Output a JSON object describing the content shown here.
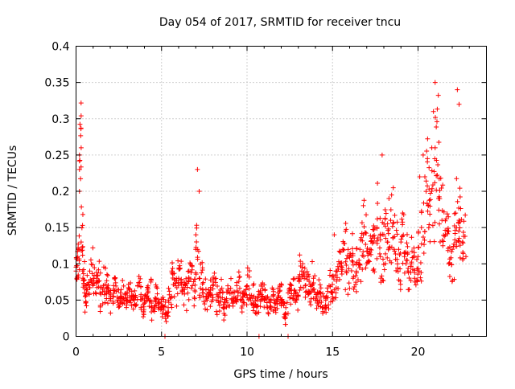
{
  "chart_data": {
    "type": "scatter",
    "title": "Day 054 of 2017, SRMTID for receiver tncu",
    "xlabel": "GPS time / hours",
    "ylabel": "SRMTID / TECUs",
    "xlim": [
      0,
      24
    ],
    "ylim": [
      0,
      0.4
    ],
    "xticks": [
      0,
      5,
      10,
      15,
      20
    ],
    "xtick_labels": [
      "0",
      "5",
      "10",
      "15",
      "20"
    ],
    "yticks": [
      0,
      0.05,
      0.1,
      0.15,
      0.2,
      0.25,
      0.3,
      0.35,
      0.4
    ],
    "ytick_labels": [
      "0",
      "0.05",
      "0.1",
      "0.15",
      "0.2",
      "0.25",
      "0.3",
      "0.35",
      "0.4"
    ],
    "grid": true,
    "marker": "plus",
    "color": "#ff0000",
    "series": [
      {
        "name": "SRMTID",
        "x": [
          0.0,
          0.1,
          0.2,
          0.3,
          0.4,
          0.5,
          0.6,
          0.8,
          1.0,
          1.2,
          1.4,
          1.6,
          1.8,
          2.0,
          2.2,
          2.4,
          2.6,
          2.8,
          3.0,
          3.2,
          3.4,
          3.6,
          3.8,
          4.0,
          4.2,
          4.4,
          4.6,
          4.8,
          5.0,
          5.2,
          5.4,
          5.6,
          5.8,
          6.0,
          6.2,
          6.4,
          6.6,
          6.8,
          7.0,
          7.2,
          7.4,
          7.6,
          7.8,
          8.0,
          8.2,
          8.4,
          8.6,
          8.8,
          9.0,
          9.2,
          9.4,
          9.6,
          9.8,
          10.0,
          10.2,
          10.4,
          10.6,
          10.8,
          11.0,
          11.2,
          11.4,
          11.6,
          11.8,
          12.0,
          12.2,
          12.4,
          12.6,
          12.8,
          13.0,
          13.2,
          13.4,
          13.6,
          13.8,
          14.0,
          14.2,
          14.4,
          14.6,
          14.8,
          15.0,
          15.2,
          15.4,
          15.6,
          15.8,
          16.0,
          16.2,
          16.4,
          16.6,
          16.8,
          17.0,
          17.2,
          17.4,
          17.6,
          17.8,
          18.0,
          18.2,
          18.4,
          18.6,
          18.8,
          19.0,
          19.2,
          19.4,
          19.6,
          19.8,
          20.0,
          20.2,
          20.4,
          20.6,
          20.8,
          21.0,
          21.2,
          21.4,
          21.6,
          21.8,
          22.0,
          22.2,
          22.4,
          22.6,
          22.8,
          0.2,
          0.2,
          0.3,
          7.1,
          7.2,
          20.1,
          20.3,
          20.9,
          21.0,
          22.3,
          22.4,
          17.9,
          18.3,
          12.4,
          10.7,
          5.2,
          15.1,
          19.1
        ],
        "y": [
          0.09,
          0.11,
          0.25,
          0.13,
          0.08,
          0.06,
          0.07,
          0.09,
          0.07,
          0.08,
          0.06,
          0.07,
          0.06,
          0.05,
          0.07,
          0.05,
          0.06,
          0.05,
          0.06,
          0.05,
          0.05,
          0.07,
          0.04,
          0.05,
          0.06,
          0.04,
          0.05,
          0.04,
          0.04,
          0.03,
          0.05,
          0.09,
          0.07,
          0.08,
          0.06,
          0.07,
          0.09,
          0.07,
          0.12,
          0.08,
          0.06,
          0.05,
          0.06,
          0.07,
          0.05,
          0.06,
          0.04,
          0.05,
          0.06,
          0.05,
          0.07,
          0.05,
          0.06,
          0.07,
          0.05,
          0.04,
          0.05,
          0.06,
          0.05,
          0.04,
          0.05,
          0.04,
          0.06,
          0.05,
          0.03,
          0.06,
          0.07,
          0.05,
          0.08,
          0.09,
          0.07,
          0.06,
          0.07,
          0.05,
          0.06,
          0.04,
          0.05,
          0.07,
          0.06,
          0.09,
          0.1,
          0.12,
          0.09,
          0.11,
          0.08,
          0.1,
          0.12,
          0.14,
          0.1,
          0.12,
          0.13,
          0.15,
          0.11,
          0.14,
          0.13,
          0.16,
          0.12,
          0.1,
          0.13,
          0.11,
          0.09,
          0.1,
          0.08,
          0.11,
          0.15,
          0.22,
          0.18,
          0.2,
          0.26,
          0.19,
          0.16,
          0.14,
          0.1,
          0.12,
          0.17,
          0.16,
          0.13,
          0.11,
          0.2,
          0.23,
          0.26,
          0.23,
          0.2,
          0.22,
          0.25,
          0.31,
          0.35,
          0.34,
          0.32,
          0.25,
          0.19,
          0.0,
          0.0,
          0.0,
          0.14,
          0.17
        ],
        "noise_seed": 54
      }
    ]
  }
}
